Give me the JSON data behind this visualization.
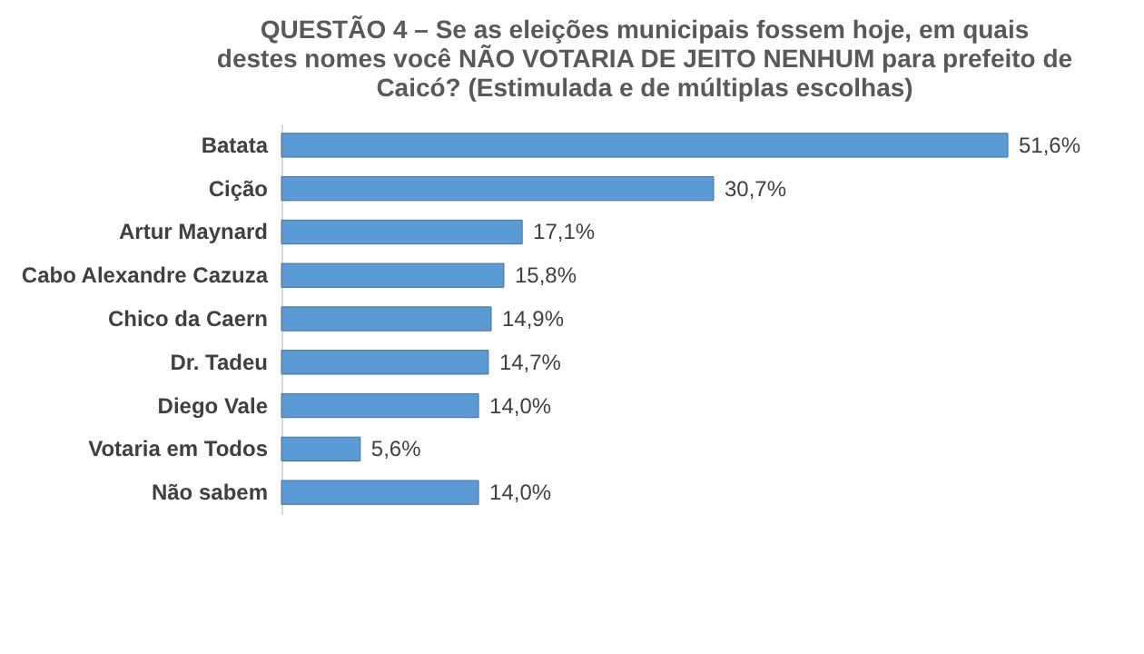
{
  "chart_data": {
    "type": "bar",
    "orientation": "horizontal",
    "title": "QUESTÃO 4 – Se as eleições municipais fossem hoje, em quais destes nomes você NÃO VOTARIA DE JEITO NENHUM para prefeito de Caicó? (Estimulada e de múltiplas escolhas)",
    "categories": [
      "Batata",
      "Cição",
      "Artur Maynard",
      "Cabo Alexandre Cazuza",
      "Chico da Caern",
      "Dr. Tadeu",
      "Diego Vale",
      "Votaria em Todos",
      "Não sabem"
    ],
    "values": [
      51.6,
      30.7,
      17.1,
      15.8,
      14.9,
      14.7,
      14.0,
      5.6,
      14.0
    ],
    "value_labels": [
      "51,6%",
      "30,7%",
      "17,1%",
      "15,8%",
      "14,9%",
      "14,7%",
      "14,0%",
      "5,6%",
      "14,0%"
    ],
    "color": "#5b9bd5"
  }
}
